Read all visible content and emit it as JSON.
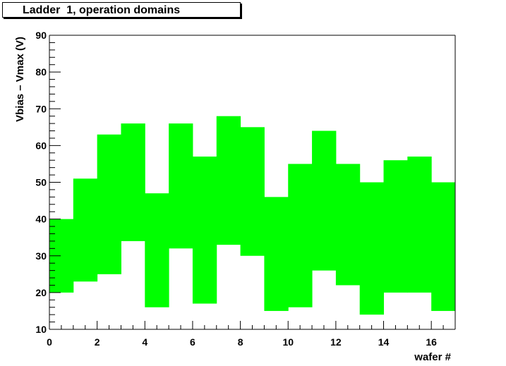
{
  "chart_data": {
    "type": "bar",
    "title": "Ladder  1, operation domains",
    "xlabel": "wafer #",
    "ylabel": "Vbias – Vmax (V)",
    "xlim": [
      0,
      17
    ],
    "ylim": [
      10,
      90
    ],
    "x_ticks": [
      0,
      2,
      4,
      6,
      8,
      10,
      12,
      14,
      16
    ],
    "y_ticks": [
      10,
      20,
      30,
      40,
      50,
      60,
      70,
      80,
      90
    ],
    "x_tick_labels": [
      "0",
      "2",
      "4",
      "6",
      "8",
      "10",
      "12",
      "14",
      "16"
    ],
    "y_tick_labels": [
      "10",
      "20",
      "30",
      "40",
      "50",
      "60",
      "70",
      "80",
      "90"
    ],
    "fill_color": "#00ff00",
    "series": [
      {
        "bins": [
          {
            "x0": 0,
            "x1": 1,
            "low": 20,
            "high": 40
          },
          {
            "x0": 1,
            "x1": 2,
            "low": 23,
            "high": 51
          },
          {
            "x0": 2,
            "x1": 3,
            "low": 25,
            "high": 63
          },
          {
            "x0": 3,
            "x1": 4,
            "low": 34,
            "high": 66
          },
          {
            "x0": 4,
            "x1": 5,
            "low": 16,
            "high": 47
          },
          {
            "x0": 5,
            "x1": 6,
            "low": 32,
            "high": 66
          },
          {
            "x0": 6,
            "x1": 7,
            "low": 17,
            "high": 57
          },
          {
            "x0": 7,
            "x1": 8,
            "low": 33,
            "high": 68
          },
          {
            "x0": 8,
            "x1": 9,
            "low": 30,
            "high": 65
          },
          {
            "x0": 9,
            "x1": 10,
            "low": 15,
            "high": 46
          },
          {
            "x0": 10,
            "x1": 11,
            "low": 16,
            "high": 55
          },
          {
            "x0": 11,
            "x1": 12,
            "low": 26,
            "high": 64
          },
          {
            "x0": 12,
            "x1": 13,
            "low": 22,
            "high": 55
          },
          {
            "x0": 13,
            "x1": 14,
            "low": 14,
            "high": 50
          },
          {
            "x0": 14,
            "x1": 15,
            "low": 20,
            "high": 56
          },
          {
            "x0": 15,
            "x1": 16,
            "low": 20,
            "high": 57
          },
          {
            "x0": 16,
            "x1": 17,
            "low": 15,
            "high": 50
          }
        ]
      }
    ]
  }
}
